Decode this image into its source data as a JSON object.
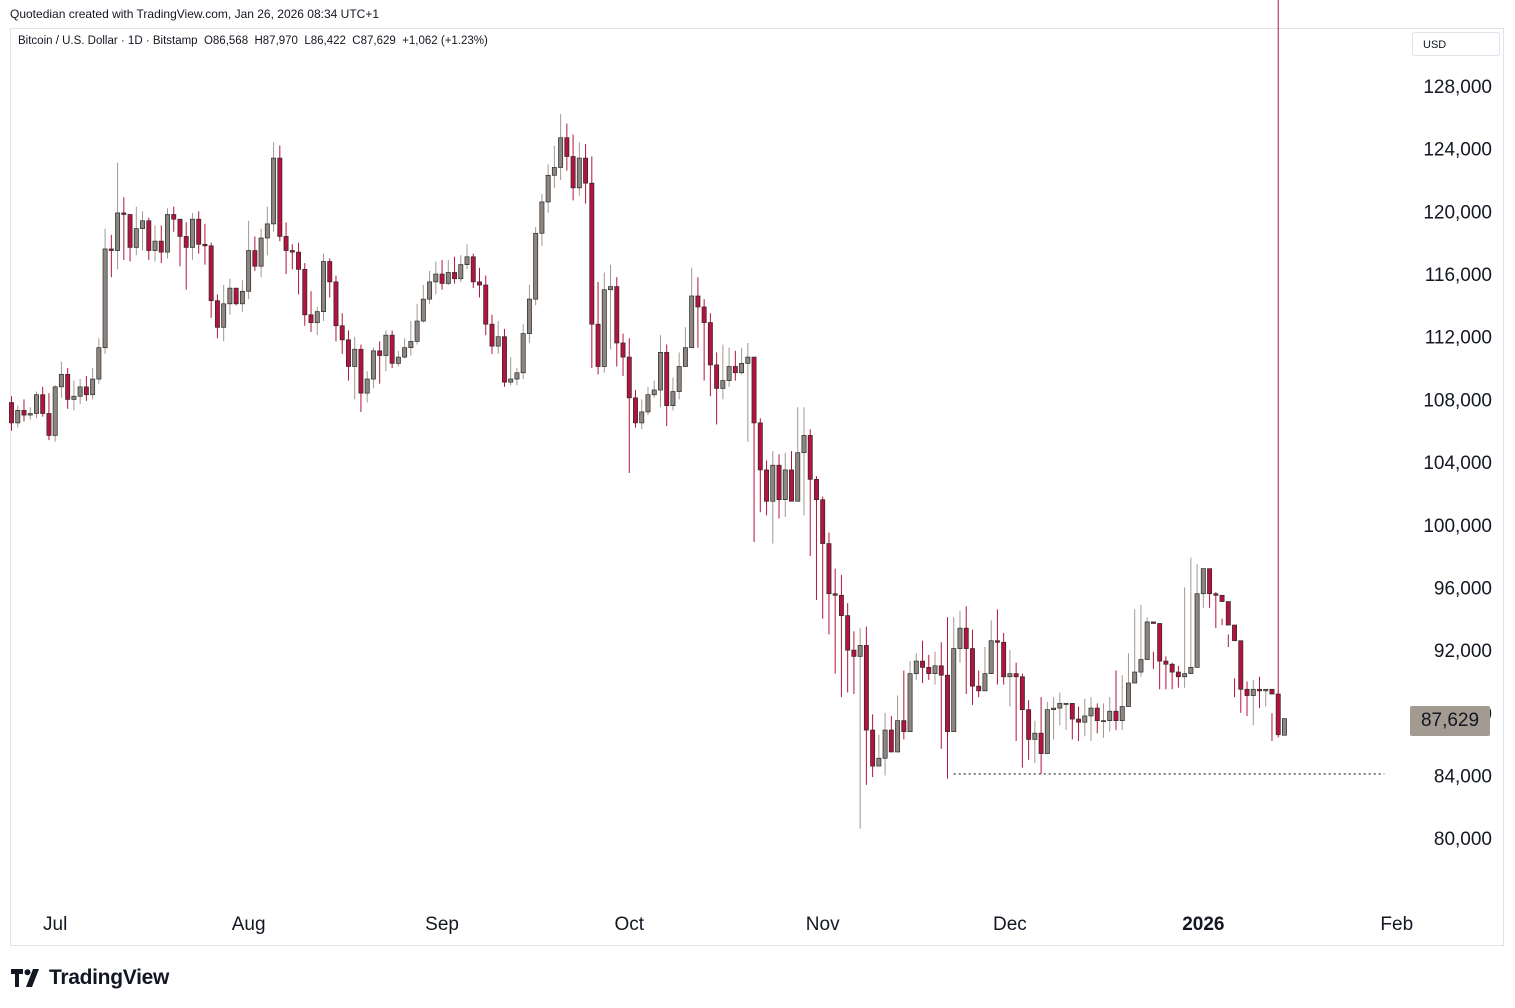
{
  "header": {
    "credit": "Quotedian created with TradingView.com, Jan 26, 2026 08:34 UTC+1",
    "legend": "Bitcoin / U.S. Dollar · 1D · Bitstamp  O86,568  H87,970  L86,422  C87,629  +1,062 (+1.23%)",
    "currency": "USD"
  },
  "footer": {
    "brand": "TradingView"
  },
  "colors": {
    "up": "#8d8580",
    "down": "#b5123f",
    "wick_down": "#b5123f",
    "wick_up": "#a09892"
  },
  "chart_data": {
    "type": "candlestick",
    "title": "Bitcoin / U.S. Dollar · 1D · Bitstamp",
    "ylabel": "USD",
    "ylim": [
      77000,
      130000
    ],
    "y_ticks": [
      "128,000",
      "124,000",
      "120,000",
      "116,000",
      "112,000",
      "108,000",
      "104,000",
      "100,000",
      "96,000",
      "92,000",
      "88,000",
      "84,000",
      "80,000"
    ],
    "y_tick_values": [
      128000,
      124000,
      120000,
      116000,
      112000,
      108000,
      104000,
      100000,
      96000,
      92000,
      88000,
      84000,
      80000
    ],
    "x_ticks": [
      {
        "label": "Jul",
        "date": "2025-07-01"
      },
      {
        "label": "Aug",
        "date": "2025-08-01"
      },
      {
        "label": "Sep",
        "date": "2025-09-01"
      },
      {
        "label": "Oct",
        "date": "2025-10-01"
      },
      {
        "label": "Nov",
        "date": "2025-11-01"
      },
      {
        "label": "Dec",
        "date": "2025-12-01"
      },
      {
        "label": "2026",
        "date": "2026-01-01",
        "bold": true
      },
      {
        "label": "Feb",
        "date": "2026-02-01"
      }
    ],
    "last_price_label": "87,629",
    "last_price": 87629,
    "support_line": {
      "value": 84100,
      "from": "2025-11-22",
      "to": "2026-01-30",
      "style": "dotted"
    },
    "start_date": "2025-06-24",
    "closes": [
      106500,
      107300,
      107000,
      107100,
      108300,
      107100,
      105700,
      108800,
      109600,
      108000,
      108200,
      108800,
      108300,
      109300,
      111300,
      117600,
      117500,
      119900,
      119800,
      117700,
      118900,
      119400,
      117500,
      118100,
      117400,
      119800,
      119500,
      118400,
      117700,
      119500,
      117900,
      117800,
      114300,
      112600,
      114100,
      115100,
      114100,
      114900,
      117500,
      116500,
      118300,
      119200,
      123400,
      118400,
      117500,
      117400,
      116300,
      113400,
      112900,
      113600,
      116800,
      115500,
      112700,
      111800,
      110100,
      111200,
      108400,
      109300,
      111100,
      110800,
      112100,
      110300,
      110700,
      111300,
      111700,
      113000,
      114400,
      115500,
      116000,
      115400,
      116100,
      115700,
      116600,
      117100,
      115500,
      115300,
      112800,
      111400,
      112000,
      109100,
      109300,
      109700,
      112200,
      114400,
      118600,
      120600,
      122300,
      122800,
      124700,
      123500,
      121500,
      123400,
      121800,
      112800,
      110100,
      115000,
      115200,
      111600,
      110700,
      108100,
      106500,
      107200,
      108300,
      108600,
      111000,
      107600,
      108500,
      110100,
      111300,
      114600,
      113900,
      112900,
      110200,
      108700,
      109200,
      110100,
      109700,
      110300,
      110700,
      106500,
      103500,
      101500,
      103800,
      101600,
      103500,
      101500,
      104600,
      105700,
      102900,
      101600,
      98800,
      95600,
      95500,
      94200,
      92000,
      91600,
      92300,
      86900,
      84600,
      85100,
      86900,
      85500,
      87500,
      86800,
      90500,
      91300,
      90900,
      90500,
      91000,
      90400,
      86800,
      92100,
      93400,
      92100,
      89700,
      89400,
      90500,
      92600,
      92500,
      90300,
      90500,
      90300,
      88200,
      86300,
      86700,
      85400,
      88200,
      88300,
      88600,
      88600,
      87600,
      87400,
      87800,
      88300,
      87500,
      87500,
      88100,
      87500,
      88400,
      89900,
      90600,
      91400,
      93800,
      93700,
      91300,
      91100,
      90600,
      90300,
      90500,
      90900,
      95600,
      97200,
      95600,
      95500,
      95100,
      93600,
      92600,
      89500,
      89100,
      89500,
      89400,
      89500,
      89200,
      86600,
      87629
    ],
    "opens": [
      107800,
      106500,
      107300,
      107000,
      107100,
      108300,
      107100,
      105700,
      108800,
      109600,
      108000,
      108200,
      108800,
      108300,
      109300,
      111300,
      117600,
      117500,
      119900,
      119800,
      117700,
      118900,
      119400,
      117500,
      118100,
      117400,
      119800,
      119500,
      118400,
      117700,
      119500,
      117900,
      117800,
      114300,
      112600,
      114100,
      115100,
      114100,
      114900,
      117500,
      116500,
      118300,
      119200,
      123400,
      118400,
      117500,
      117400,
      116300,
      113400,
      112900,
      113600,
      116800,
      115500,
      112700,
      111800,
      110100,
      111200,
      108400,
      109300,
      111100,
      110800,
      112100,
      110300,
      110700,
      111300,
      111700,
      113000,
      114400,
      115500,
      116000,
      115400,
      116100,
      115700,
      116600,
      117100,
      115500,
      115300,
      112800,
      111400,
      112000,
      109100,
      109300,
      109700,
      112200,
      114400,
      118600,
      120600,
      122300,
      122800,
      124700,
      123500,
      121500,
      123400,
      121800,
      112800,
      110100,
      115000,
      115200,
      111600,
      110700,
      108100,
      106500,
      107200,
      108300,
      108600,
      111000,
      107600,
      108500,
      110100,
      111300,
      114600,
      113900,
      112900,
      110200,
      108700,
      109200,
      110100,
      109700,
      110300,
      110700,
      106500,
      103500,
      101500,
      103800,
      101600,
      103500,
      101500,
      104600,
      105700,
      102900,
      101600,
      98800,
      95600,
      95500,
      94200,
      92000,
      91600,
      92300,
      86900,
      84600,
      85100,
      86900,
      85500,
      87500,
      86800,
      90500,
      91300,
      90900,
      90500,
      91000,
      90400,
      86800,
      92100,
      93400,
      92100,
      89700,
      89400,
      90500,
      92600,
      92500,
      90300,
      90500,
      90300,
      88200,
      86300,
      86700,
      85400,
      88200,
      88300,
      88600,
      88600,
      87600,
      87400,
      87800,
      88300,
      87500,
      87500,
      88100,
      87500,
      88400,
      89900,
      90600,
      91400,
      93800,
      93700,
      91300,
      91100,
      90600,
      90300,
      90500,
      90900,
      95600,
      97200,
      95600,
      95500,
      95100,
      93600,
      92600,
      89500,
      89100,
      89500,
      89400,
      89500,
      89200,
      86568
    ],
    "highs": [
      108200,
      107600,
      108000,
      107500,
      108500,
      108800,
      108400,
      108900,
      110400,
      110000,
      109200,
      109300,
      109500,
      110000,
      111900,
      118900,
      118500,
      123100,
      120900,
      119000,
      120300,
      120000,
      119600,
      119100,
      119100,
      120200,
      120300,
      119500,
      119300,
      119900,
      120000,
      119200,
      118000,
      114700,
      115300,
      115700,
      115000,
      115600,
      119400,
      118400,
      118900,
      120300,
      124400,
      124200,
      119300,
      117900,
      118000,
      116700,
      114900,
      113900,
      117300,
      117000,
      115900,
      113500,
      112400,
      112000,
      111500,
      109800,
      111300,
      111700,
      112400,
      112400,
      111100,
      111900,
      113000,
      114100,
      115300,
      116200,
      116800,
      116900,
      116900,
      117100,
      117200,
      117900,
      117300,
      116400,
      115900,
      113400,
      113000,
      112500,
      110700,
      110000,
      112800,
      115300,
      119000,
      121100,
      123000,
      124200,
      126200,
      125600,
      124900,
      124400,
      124300,
      123500,
      115500,
      116100,
      116600,
      115800,
      112200,
      111900,
      108600,
      108000,
      108800,
      109200,
      112100,
      111500,
      109400,
      111000,
      112600,
      116400,
      115800,
      114400,
      113500,
      111000,
      111500,
      111300,
      111100,
      111300,
      111600,
      110700,
      106800,
      104100,
      104700,
      104500,
      104600,
      104700,
      107500,
      107500,
      106100,
      103100,
      101800,
      99500,
      97200,
      96800,
      95000,
      93200,
      93400,
      93500,
      87900,
      86600,
      88000,
      87800,
      89100,
      90700,
      91300,
      91800,
      92600,
      91700,
      91900,
      92500,
      94100,
      94100,
      94500,
      94800,
      93300,
      90700,
      92200,
      93900,
      94600,
      93100,
      92000,
      91200,
      90500,
      88800,
      87500,
      89000,
      88700,
      89000,
      89300,
      88600,
      88400,
      88400,
      88900,
      89000,
      88600,
      88600,
      89000,
      90700,
      90400,
      91800,
      94600,
      94900,
      94100,
      91900,
      91700,
      91600,
      91200,
      91000,
      96000,
      97900,
      97500,
      96000,
      95900,
      95700,
      94000,
      93000,
      90200,
      90900,
      90000,
      90100,
      90300,
      89500,
      87970
    ],
    "lows": [
      106000,
      106200,
      106600,
      106700,
      106800,
      106900,
      105400,
      105300,
      108100,
      107400,
      107300,
      107700,
      107900,
      108000,
      109000,
      110900,
      115800,
      116300,
      116900,
      116800,
      117200,
      117500,
      116900,
      116800,
      116700,
      117000,
      118700,
      116500,
      115000,
      116900,
      117300,
      116600,
      113200,
      111900,
      111700,
      113400,
      114000,
      113600,
      114400,
      116200,
      115800,
      117200,
      118700,
      118100,
      116000,
      116300,
      114700,
      112700,
      112300,
      112100,
      113000,
      114500,
      111700,
      110900,
      109200,
      108000,
      107200,
      107800,
      108700,
      109000,
      109800,
      110000,
      110100,
      110600,
      110800,
      111500,
      112900,
      114100,
      114700,
      115000,
      115300,
      115400,
      115500,
      116300,
      115100,
      114500,
      112100,
      110900,
      110900,
      108800,
      108900,
      108900,
      109300,
      111600,
      114000,
      117800,
      119900,
      121500,
      122000,
      122600,
      120700,
      121000,
      120500,
      110000,
      109600,
      109700,
      111200,
      110100,
      109500,
      103300,
      106200,
      106100,
      107000,
      108100,
      107500,
      106300,
      107300,
      108000,
      110500,
      111700,
      111300,
      109200,
      108200,
      106400,
      108000,
      108800,
      109200,
      109600,
      105300,
      98900,
      100800,
      100600,
      98800,
      100400,
      100500,
      103400,
      101900,
      100600,
      98000,
      95200,
      94000,
      93000,
      90500,
      89000,
      89300,
      89200,
      80600,
      83400,
      83900,
      85000,
      84000,
      86600,
      86200,
      86300,
      89300,
      90100,
      89900,
      90100,
      89800,
      85700,
      83800,
      91000,
      91200,
      89200,
      88500,
      89000,
      90200,
      91500,
      89800,
      89800,
      88400,
      86200,
      84500,
      85000,
      84800,
      84100,
      87000,
      86300,
      87200,
      86900,
      86300,
      86200,
      86500,
      86200,
      86700,
      86400,
      86800,
      86900,
      86900,
      89000,
      89900,
      90300,
      93000,
      90800,
      89500,
      89500,
      89500,
      89600,
      89600,
      90700,
      94700,
      94700,
      94700,
      93400,
      93600,
      92200,
      89000,
      88000,
      87800,
      87200,
      88300,
      88400,
      86200,
      86422
    ]
  }
}
